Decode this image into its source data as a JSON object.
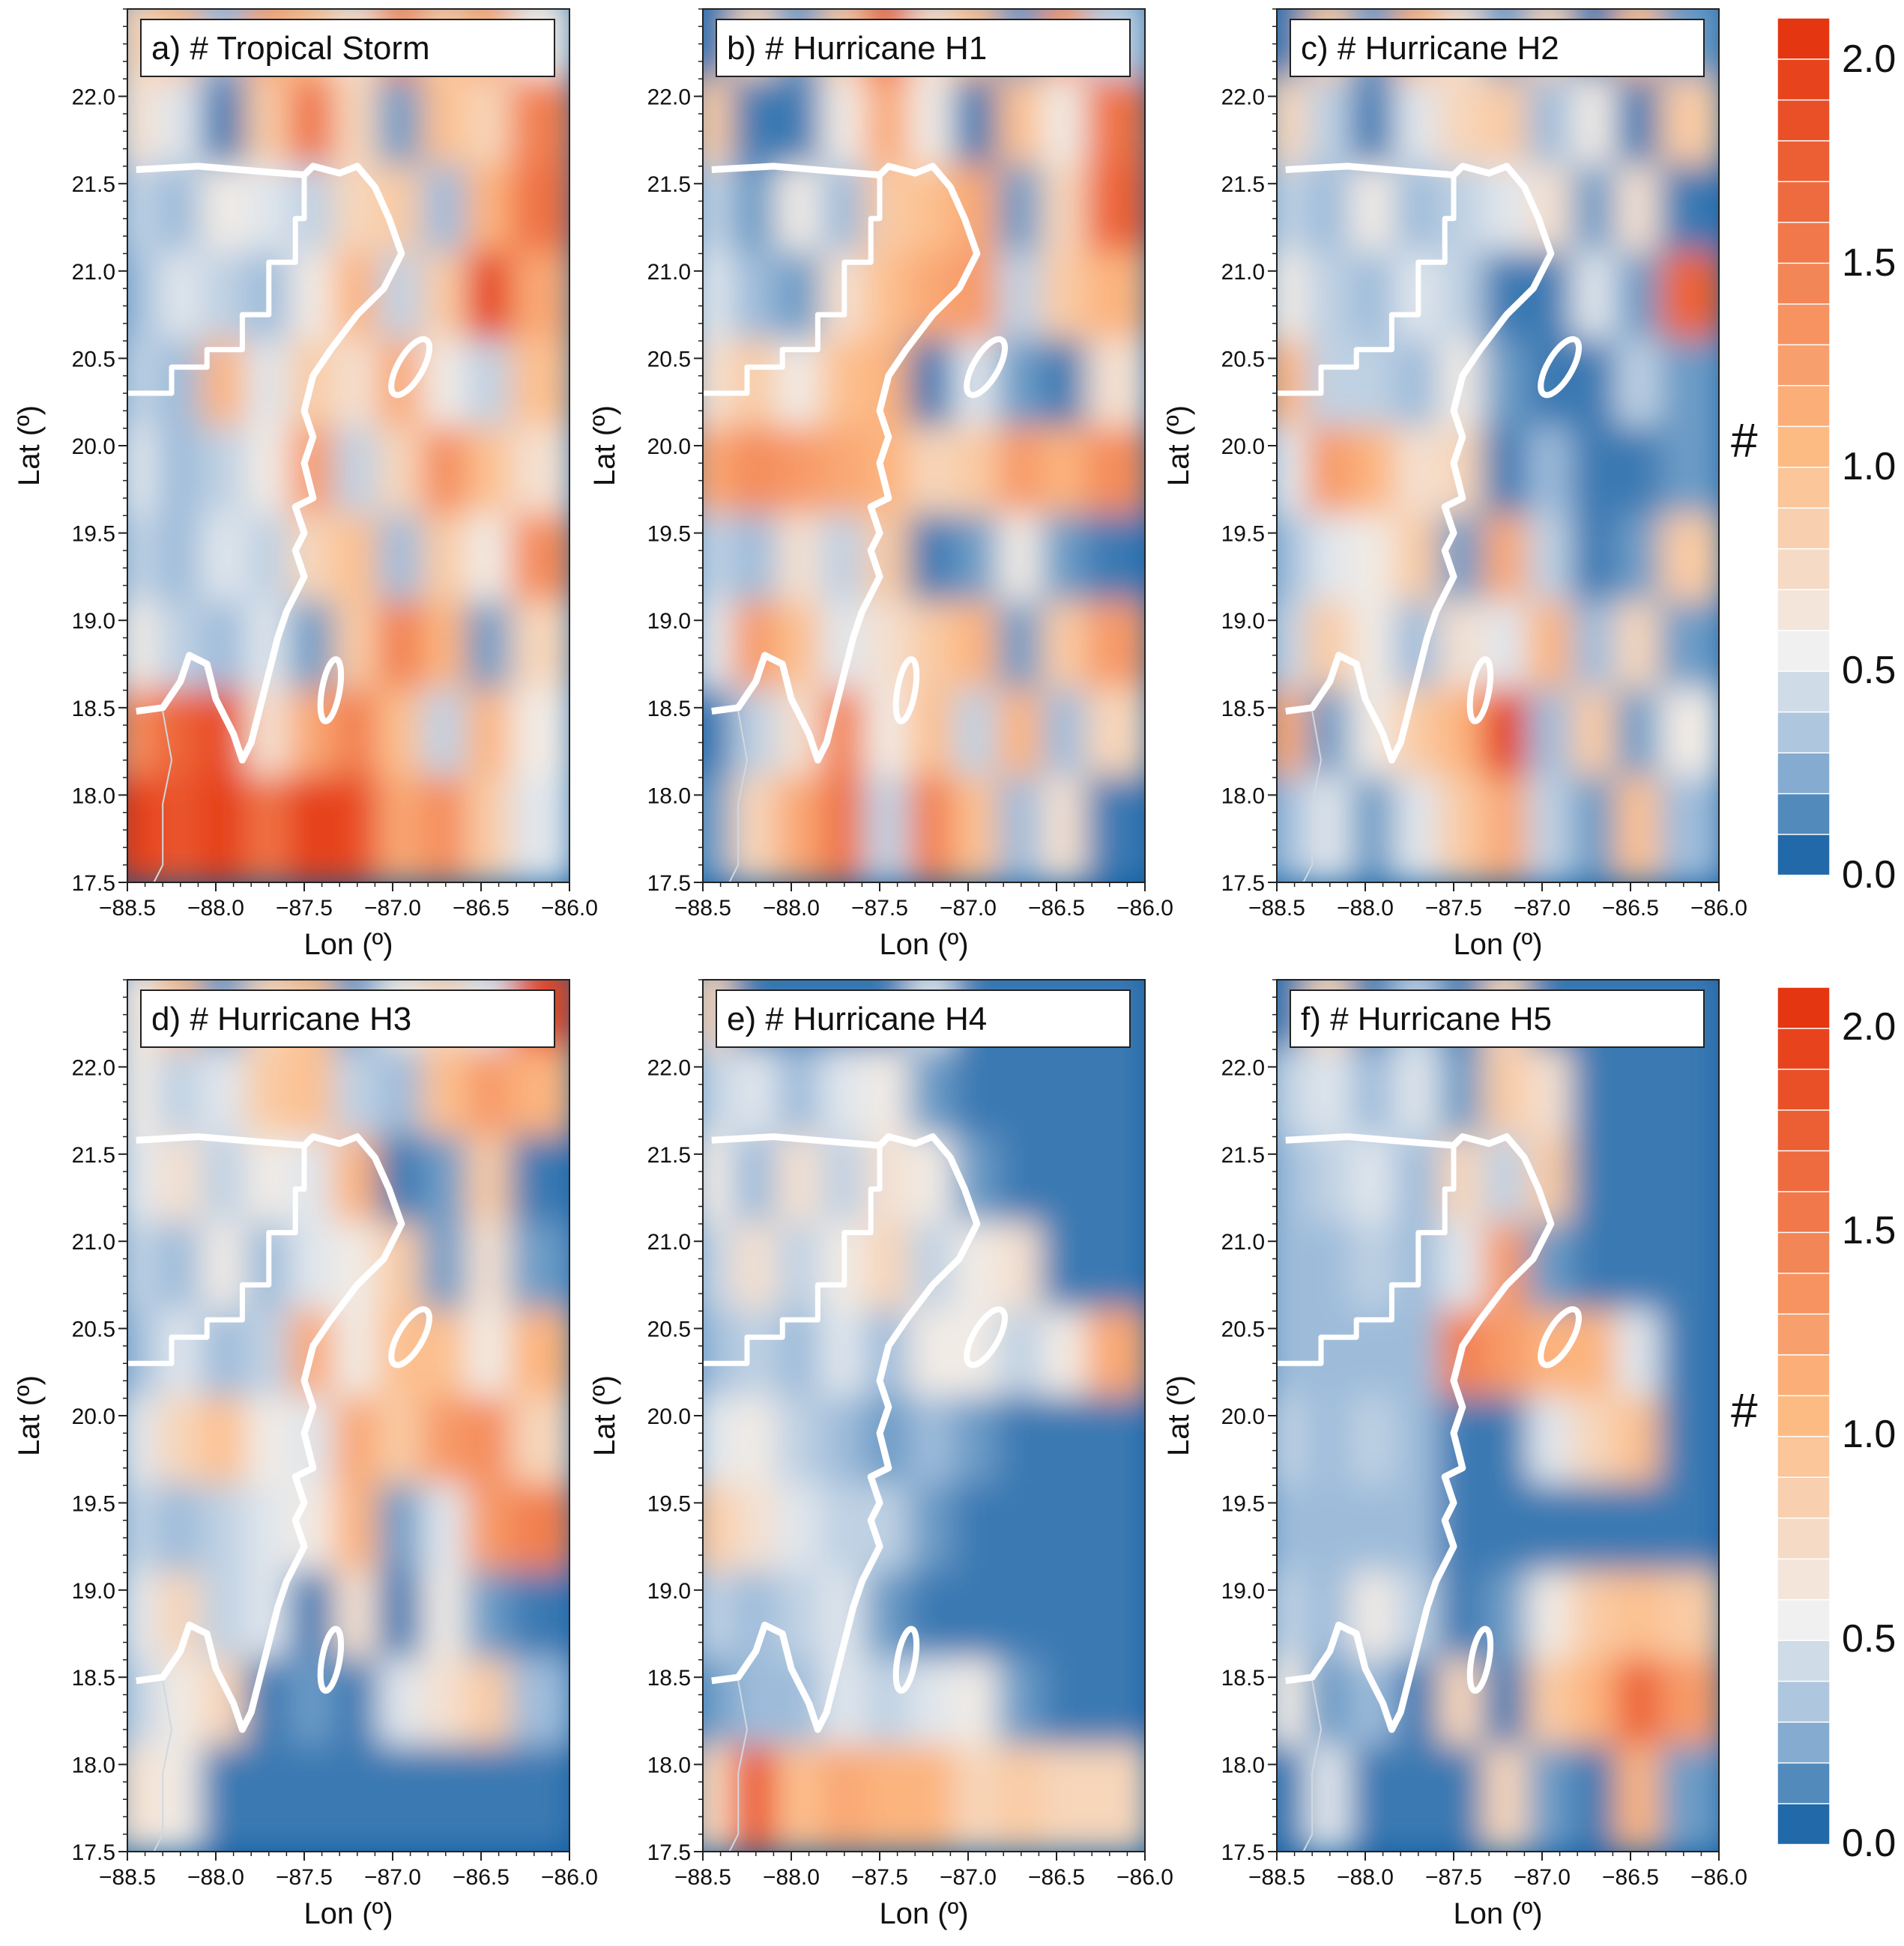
{
  "chart_data": {
    "type": "heatmap",
    "colors": {
      "low": "#08589e",
      "mid_low": "#9ebcda",
      "mid": "#f0f0f0",
      "mid_high": "#fdbb84",
      "high": "#e32f0b"
    },
    "colorbar": {
      "label": "#",
      "range": [
        0.0,
        2.1
      ],
      "ticks": [
        "0.0",
        "0.5",
        "1.0",
        "1.5",
        "2.0"
      ],
      "tick_values": [
        0.0,
        0.5,
        1.0,
        1.5,
        2.0
      ],
      "levels": 21
    },
    "xlabel": "Lon (º)",
    "ylabel": "Lat (º)",
    "xlim": [
      -88.5,
      -86.0
    ],
    "ylim": [
      17.5,
      22.5
    ],
    "x_ticks": [
      "−88.5",
      "−88.0",
      "−87.5",
      "−87.0",
      "−86.5",
      "−86.0"
    ],
    "y_ticks": [
      "17.5",
      "18.0",
      "18.5",
      "19.0",
      "19.5",
      "20.0",
      "20.5",
      "21.0",
      "21.5",
      "22.0"
    ],
    "grid_lon": [
      -88.4,
      -88.15,
      -87.9,
      -87.65,
      -87.4,
      -87.15,
      -86.9,
      -86.65,
      -86.4,
      -86.15
    ],
    "grid_lat": [
      22.3,
      21.8,
      21.3,
      20.8,
      20.3,
      19.8,
      19.3,
      18.8,
      18.3,
      17.8
    ],
    "panels": [
      {
        "title": "a) # Tropical Storm",
        "values": [
          [
            0.8,
            1.0,
            0.3,
            1.2,
            1.0,
            0.7,
            1.4,
            0.9,
            1.2,
            0.6
          ],
          [
            0.7,
            0.5,
            0.1,
            0.9,
            1.6,
            0.8,
            0.2,
            1.0,
            0.8,
            1.5
          ],
          [
            0.4,
            0.3,
            0.6,
            0.5,
            0.4,
            0.8,
            0.9,
            0.3,
            1.1,
            1.6
          ],
          [
            0.3,
            0.5,
            0.4,
            0.3,
            0.6,
            1.1,
            0.4,
            0.9,
            2.0,
            1.2
          ],
          [
            0.4,
            0.3,
            1.1,
            0.5,
            0.9,
            0.7,
            1.2,
            0.6,
            0.4,
            1.0
          ],
          [
            0.5,
            0.3,
            0.4,
            0.6,
            1.3,
            0.4,
            0.8,
            1.4,
            1.0,
            0.7
          ],
          [
            0.4,
            0.3,
            0.5,
            0.4,
            0.8,
            1.0,
            0.3,
            0.9,
            0.6,
            1.4
          ],
          [
            0.6,
            0.4,
            0.3,
            0.5,
            0.2,
            0.9,
            1.5,
            1.1,
            0.2,
            0.8
          ],
          [
            1.4,
            1.7,
            1.9,
            0.7,
            1.2,
            1.5,
            1.0,
            0.4,
            1.1,
            0.6
          ],
          [
            2.0,
            1.8,
            2.0,
            1.6,
            2.0,
            1.9,
            1.2,
            1.4,
            0.9,
            0.5
          ]
        ]
      },
      {
        "title": "b) # Hurricane H1",
        "values": [
          [
            0.1,
            0.8,
            0.2,
            0.9,
            1.7,
            0.7,
            1.0,
            0.2,
            1.3,
            0.4
          ],
          [
            0.9,
            0.1,
            0.1,
            0.6,
            1.2,
            0.6,
            0.1,
            1.0,
            0.6,
            1.6
          ],
          [
            0.4,
            0.2,
            0.6,
            0.3,
            0.9,
            1.0,
            1.2,
            0.2,
            0.8,
            1.7
          ],
          [
            0.5,
            0.3,
            0.2,
            0.7,
            1.0,
            1.2,
            1.3,
            0.4,
            0.9,
            1.1
          ],
          [
            0.7,
            0.9,
            0.6,
            1.0,
            1.1,
            0.1,
            0.5,
            0.2,
            0.1,
            0.7
          ],
          [
            1.2,
            1.4,
            1.3,
            1.2,
            1.1,
            0.8,
            0.9,
            1.3,
            1.1,
            1.4
          ],
          [
            0.4,
            0.3,
            0.7,
            0.4,
            0.9,
            0.1,
            0.2,
            0.6,
            0.2,
            0.1
          ],
          [
            0.5,
            1.3,
            1.0,
            0.5,
            0.7,
            0.9,
            1.1,
            0.2,
            0.9,
            1.3
          ],
          [
            0.1,
            0.4,
            0.7,
            1.5,
            0.6,
            1.0,
            0.4,
            1.1,
            0.3,
            0.8
          ],
          [
            0.2,
            0.8,
            1.2,
            1.6,
            0.4,
            1.5,
            1.0,
            0.3,
            0.7,
            0.1
          ]
        ]
      },
      {
        "title": "c) # Hurricane H2",
        "values": [
          [
            0.1,
            0.9,
            0.2,
            1.1,
            0.7,
            0.2,
            0.8,
            0.1,
            1.0,
            0.2
          ],
          [
            0.8,
            0.4,
            0.1,
            0.5,
            0.8,
            0.9,
            0.3,
            0.6,
            0.1,
            0.9
          ],
          [
            0.4,
            0.3,
            0.6,
            0.3,
            0.4,
            0.5,
            0.7,
            0.2,
            0.7,
            0.1
          ],
          [
            0.6,
            0.4,
            0.3,
            0.5,
            0.4,
            0.1,
            0.1,
            0.5,
            0.2,
            1.7
          ],
          [
            1.1,
            0.4,
            0.4,
            0.3,
            0.6,
            0.2,
            0.1,
            0.1,
            0.4,
            0.2
          ],
          [
            0.5,
            1.3,
            1.1,
            0.7,
            0.8,
            0.1,
            0.3,
            0.1,
            0.1,
            0.2
          ],
          [
            0.3,
            0.5,
            0.6,
            0.9,
            0.2,
            1.2,
            0.4,
            0.1,
            0.2,
            0.9
          ],
          [
            0.4,
            0.9,
            0.6,
            0.3,
            0.7,
            0.5,
            1.1,
            0.3,
            0.8,
            0.2
          ],
          [
            1.2,
            0.2,
            0.6,
            0.9,
            1.1,
            2.0,
            0.3,
            0.9,
            0.2,
            0.6
          ],
          [
            0.3,
            0.5,
            0.2,
            0.5,
            0.9,
            1.2,
            0.4,
            0.2,
            1.0,
            0.3
          ]
        ]
      },
      {
        "title": "d) #  Hurricane H3",
        "values": [
          [
            0.6,
            1.0,
            0.2,
            0.8,
            1.0,
            0.2,
            0.6,
            0.8,
            0.5,
            1.9
          ],
          [
            0.6,
            0.4,
            0.5,
            0.9,
            1.0,
            0.4,
            0.3,
            1.0,
            1.3,
            1.1
          ],
          [
            0.5,
            0.7,
            0.4,
            0.6,
            0.5,
            1.1,
            0.1,
            0.2,
            0.9,
            0.1
          ],
          [
            0.4,
            0.3,
            0.6,
            0.3,
            0.5,
            0.6,
            0.9,
            0.2,
            0.7,
            0.2
          ],
          [
            0.3,
            0.5,
            0.3,
            0.4,
            1.2,
            0.6,
            1.0,
            1.0,
            0.6,
            1.1
          ],
          [
            0.5,
            0.8,
            1.0,
            0.6,
            0.5,
            1.2,
            0.9,
            1.3,
            1.4,
            0.8
          ],
          [
            0.4,
            0.3,
            0.4,
            0.5,
            0.6,
            1.1,
            0.2,
            0.5,
            1.3,
            1.5
          ],
          [
            0.5,
            0.8,
            0.4,
            0.5,
            0.1,
            0.7,
            0.1,
            0.6,
            0.2,
            0.1
          ],
          [
            0.4,
            0.6,
            0.8,
            0.1,
            0.2,
            0.1,
            0.5,
            0.7,
            0.9,
            0.3
          ],
          [
            0.7,
            0.6,
            0.1,
            0.1,
            0.1,
            0.1,
            0.1,
            0.1,
            0.1,
            0.1
          ]
        ]
      },
      {
        "title": "e) #  Hurricane H4",
        "values": [
          [
            0.8,
            0.1,
            0.1,
            0.1,
            0.1,
            0.5,
            0.1,
            0.1,
            0.1,
            0.1
          ],
          [
            0.4,
            0.5,
            0.3,
            0.5,
            0.6,
            0.2,
            0.1,
            0.1,
            0.1,
            0.1
          ],
          [
            0.6,
            0.3,
            0.7,
            0.4,
            0.7,
            0.6,
            0.2,
            0.1,
            0.1,
            0.1
          ],
          [
            0.4,
            0.7,
            0.4,
            0.6,
            0.8,
            0.4,
            0.6,
            0.7,
            0.1,
            0.1
          ],
          [
            0.3,
            0.4,
            0.3,
            0.5,
            0.3,
            0.6,
            0.6,
            0.4,
            0.6,
            1.2
          ],
          [
            0.5,
            0.6,
            0.4,
            0.3,
            0.2,
            0.3,
            0.2,
            0.1,
            0.1,
            0.1
          ],
          [
            0.9,
            0.7,
            0.5,
            0.4,
            0.4,
            0.2,
            0.1,
            0.1,
            0.1,
            0.1
          ],
          [
            0.4,
            0.3,
            0.4,
            0.5,
            0.2,
            0.1,
            0.1,
            0.1,
            0.1,
            0.1
          ],
          [
            0.2,
            0.3,
            0.3,
            0.5,
            0.4,
            0.5,
            0.6,
            0.2,
            0.1,
            0.1
          ],
          [
            0.8,
            1.8,
            1.0,
            1.2,
            1.1,
            1.1,
            0.8,
            0.9,
            0.8,
            0.8
          ]
        ]
      },
      {
        "title": "f) #  Hurricane H5",
        "values": [
          [
            0.1,
            0.8,
            0.1,
            0.4,
            0.1,
            0.8,
            0.1,
            0.1,
            0.1,
            0.1
          ],
          [
            0.4,
            0.5,
            0.3,
            0.5,
            0.2,
            0.9,
            0.7,
            0.1,
            0.1,
            0.1
          ],
          [
            0.3,
            0.4,
            0.5,
            0.3,
            0.8,
            0.4,
            0.9,
            0.1,
            0.1,
            0.1
          ],
          [
            0.3,
            0.3,
            0.4,
            0.3,
            0.5,
            1.3,
            0.2,
            0.1,
            0.1,
            0.1
          ],
          [
            0.3,
            0.3,
            0.3,
            0.3,
            1.5,
            1.3,
            1.1,
            1.1,
            0.5,
            0.1
          ],
          [
            0.4,
            0.3,
            0.4,
            0.3,
            0.1,
            0.1,
            0.5,
            0.8,
            1.0,
            0.1
          ],
          [
            0.3,
            0.3,
            0.3,
            0.3,
            0.1,
            0.1,
            0.1,
            0.1,
            0.1,
            0.1
          ],
          [
            0.4,
            0.3,
            0.6,
            0.4,
            0.1,
            0.2,
            0.6,
            0.9,
            1.0,
            0.9
          ],
          [
            0.6,
            0.2,
            0.3,
            0.1,
            0.8,
            0.1,
            0.9,
            1.1,
            1.7,
            1.3
          ],
          [
            0.1,
            0.5,
            0.1,
            0.1,
            0.1,
            0.8,
            0.2,
            0.1,
            1.1,
            0.2
          ]
        ]
      }
    ],
    "coastline": [
      [
        -88.45,
        21.58
      ],
      [
        -88.1,
        21.6
      ],
      [
        -87.75,
        21.57
      ],
      [
        -87.5,
        21.55
      ],
      [
        -87.45,
        21.6
      ],
      [
        -87.3,
        21.56
      ],
      [
        -87.2,
        21.6
      ],
      [
        -87.1,
        21.48
      ],
      [
        -87.02,
        21.3
      ],
      [
        -86.95,
        21.1
      ],
      [
        -87.05,
        20.9
      ],
      [
        -87.2,
        20.75
      ],
      [
        -87.35,
        20.55
      ],
      [
        -87.45,
        20.4
      ],
      [
        -87.5,
        20.2
      ],
      [
        -87.45,
        20.05
      ],
      [
        -87.5,
        19.9
      ],
      [
        -87.45,
        19.7
      ],
      [
        -87.55,
        19.65
      ],
      [
        -87.5,
        19.5
      ],
      [
        -87.55,
        19.4
      ],
      [
        -87.5,
        19.25
      ],
      [
        -87.6,
        19.05
      ],
      [
        -87.65,
        18.9
      ],
      [
        -87.7,
        18.7
      ],
      [
        -87.75,
        18.5
      ],
      [
        -87.8,
        18.3
      ],
      [
        -87.85,
        18.2
      ],
      [
        -87.9,
        18.35
      ],
      [
        -88.0,
        18.55
      ],
      [
        -88.05,
        18.75
      ],
      [
        -88.15,
        18.8
      ],
      [
        -88.2,
        18.65
      ],
      [
        -88.3,
        18.5
      ],
      [
        -88.45,
        18.48
      ]
    ],
    "state_border": [
      [
        -87.5,
        21.55
      ],
      [
        -87.5,
        21.3
      ],
      [
        -87.55,
        21.3
      ],
      [
        -87.55,
        21.05
      ],
      [
        -87.7,
        21.05
      ],
      [
        -87.7,
        20.75
      ],
      [
        -87.85,
        20.75
      ],
      [
        -87.85,
        20.55
      ],
      [
        -88.05,
        20.55
      ],
      [
        -88.05,
        20.45
      ],
      [
        -88.25,
        20.45
      ],
      [
        -88.25,
        20.3
      ],
      [
        -88.5,
        20.3
      ]
    ],
    "islands": [
      {
        "lon": -86.9,
        "lat": 20.45,
        "rlon": 0.07,
        "rlat": 0.18,
        "rot": 30
      },
      {
        "lon": -87.35,
        "lat": 18.6,
        "rlon": 0.05,
        "rlat": 0.18,
        "rot": 10
      }
    ],
    "border_river": [
      [
        -88.3,
        18.48
      ],
      [
        -88.25,
        18.2
      ],
      [
        -88.3,
        17.95
      ],
      [
        -88.3,
        17.6
      ],
      [
        -88.35,
        17.5
      ]
    ]
  }
}
